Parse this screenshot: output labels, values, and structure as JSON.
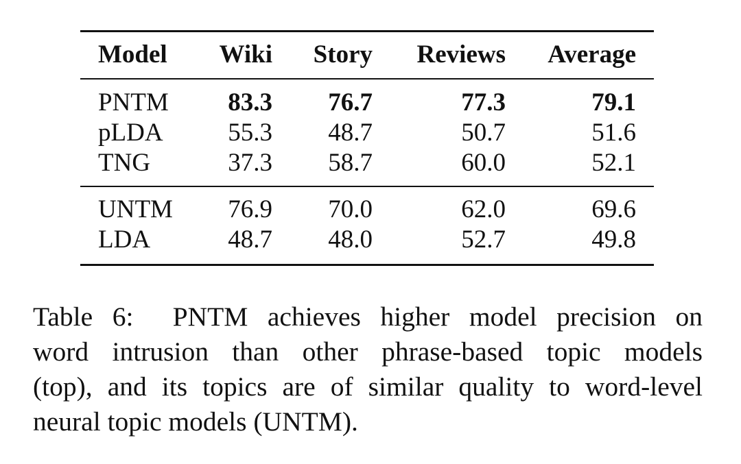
{
  "table": {
    "headers": [
      "Model",
      "Wiki",
      "Story",
      "Reviews",
      "Average"
    ],
    "groups": [
      [
        {
          "model": "PNTM",
          "small_caps": true,
          "values": [
            "83.3",
            "76.7",
            "77.3",
            "79.1"
          ],
          "bold": true
        },
        {
          "model": "pLDA",
          "values": [
            "55.3",
            "48.7",
            "50.7",
            "51.6"
          ]
        },
        {
          "model": "TNG",
          "values": [
            "37.3",
            "58.7",
            "60.0",
            "52.1"
          ]
        }
      ],
      [
        {
          "model": "UNTM",
          "values": [
            "76.9",
            "70.0",
            "62.0",
            "69.6"
          ]
        },
        {
          "model": "LDA",
          "values": [
            "48.7",
            "48.0",
            "52.7",
            "49.8"
          ]
        }
      ]
    ]
  },
  "caption": {
    "label": "Table 6:",
    "model_name": "PNTM",
    "line1_rest": "achieves higher model precision on",
    "line2": "word intrusion than other phrase-based topic models",
    "line3": "(top), and its topics are of similar quality to word-level",
    "line4": "neural topic models (UNTM)."
  }
}
